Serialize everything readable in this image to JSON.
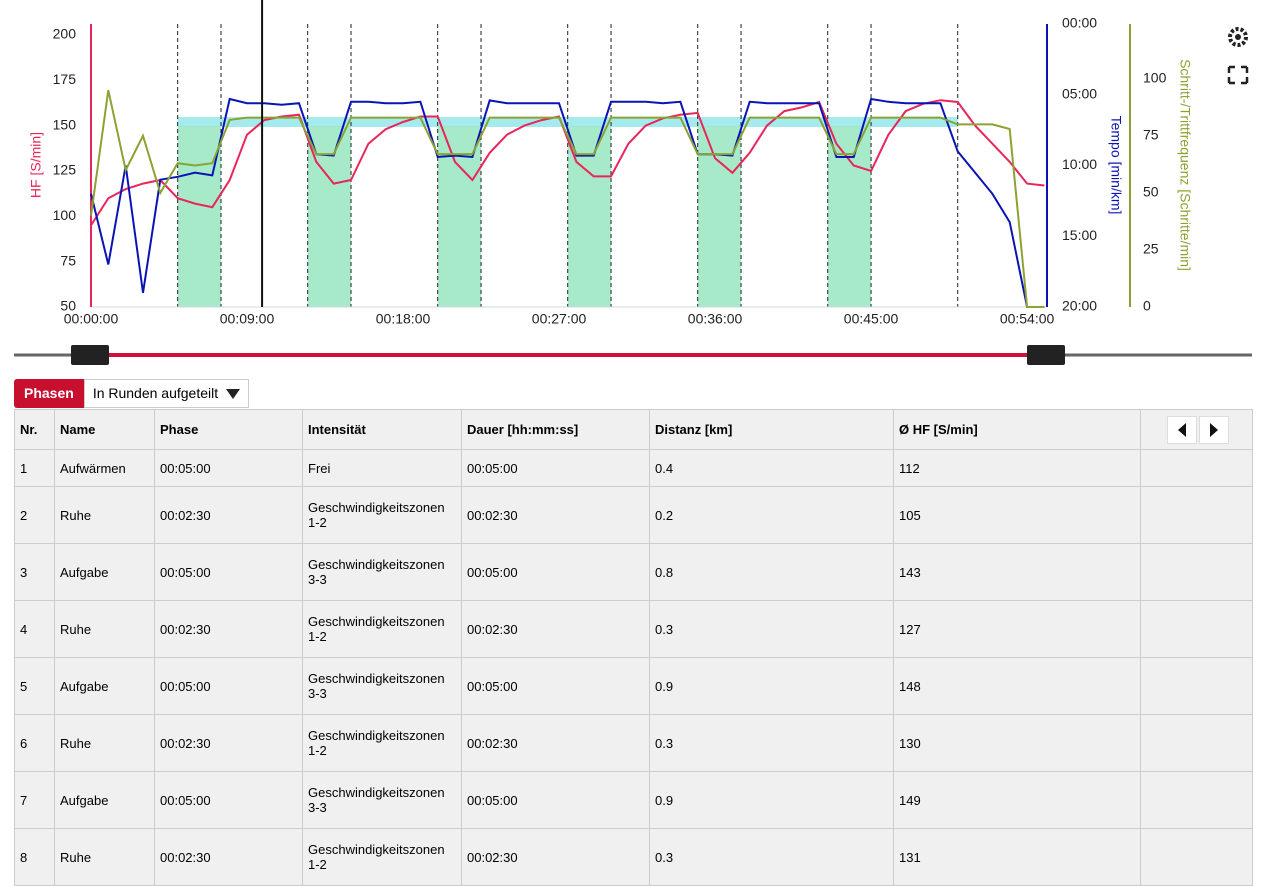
{
  "chart_data": {
    "type": "line",
    "x": [
      0,
      1,
      2,
      3,
      4,
      5,
      6,
      7,
      8,
      9,
      10,
      11,
      12,
      13,
      14,
      15,
      16,
      17,
      18,
      19,
      20,
      21,
      22,
      23,
      24,
      25,
      26,
      27,
      28,
      29,
      30,
      31,
      32,
      33,
      34,
      35,
      36,
      37,
      38,
      39,
      40,
      41,
      42,
      43,
      44,
      45,
      46,
      47,
      48,
      49,
      50,
      51,
      52,
      53,
      54,
      55
    ],
    "xlim": [
      0,
      55.15
    ],
    "xticks": [
      {
        "value": 0,
        "label": "00:00:00"
      },
      {
        "value": 9,
        "label": "00:09:00"
      },
      {
        "value": 18,
        "label": "00:18:00"
      },
      {
        "value": 27,
        "label": "00:27:00"
      },
      {
        "value": 36,
        "label": "00:36:00"
      },
      {
        "value": 45,
        "label": "00:45:00"
      },
      {
        "value": 54,
        "label": "00:54:00"
      }
    ],
    "ylabel": "HF [S/min]",
    "ylim": [
      50,
      206
    ],
    "yticks": [
      50,
      75,
      100,
      125,
      150,
      175,
      200
    ],
    "y2label": "Tempo [min/km]",
    "y2lim": [
      0,
      20
    ],
    "y2_inverted": true,
    "y2ticks": [
      {
        "value": 0,
        "label": "00:00"
      },
      {
        "value": 5,
        "label": "05:00"
      },
      {
        "value": 10,
        "label": "10:00"
      },
      {
        "value": 15,
        "label": "15:00"
      },
      {
        "value": 20,
        "label": "20:00"
      }
    ],
    "y3label": "Schritt-/Trittfrequenz [Schritte/min]",
    "y3lim": [
      0,
      124
    ],
    "y3ticks": [
      0,
      25,
      50,
      75,
      100
    ],
    "markers": [
      5,
      7.5,
      12.5,
      15,
      20,
      22.5,
      27.5,
      30,
      35,
      37.5,
      42.5,
      45,
      50
    ],
    "cursor": 9.87,
    "series": [
      {
        "name": "HF",
        "color": "#e8265a",
        "axis": "y",
        "values": [
          95,
          110,
          115,
          118,
          120,
          110,
          107,
          105,
          120,
          145,
          153,
          155,
          156,
          130,
          118,
          120,
          140,
          148,
          152,
          155,
          155,
          130,
          120,
          135,
          145,
          150,
          153,
          155,
          130,
          122,
          122,
          140,
          150,
          154,
          156,
          157,
          132,
          124,
          135,
          150,
          158,
          160,
          163,
          140,
          128,
          125,
          145,
          158,
          162,
          164,
          163,
          150,
          140,
          130,
          118,
          117
        ]
      },
      {
        "name": "Tempo",
        "color": "#0a14b4",
        "axis": "y2",
        "values": [
          12,
          17,
          10,
          19,
          11,
          10.8,
          10.5,
          10.7,
          5.3,
          5.6,
          5.6,
          5.7,
          5.6,
          9.2,
          9.3,
          5.5,
          5.5,
          5.6,
          5.6,
          5.5,
          9.4,
          9.3,
          9.4,
          5.4,
          5.6,
          5.6,
          5.6,
          5.6,
          9.3,
          9.3,
          5.5,
          5.5,
          5.5,
          5.6,
          5.5,
          9.2,
          9.2,
          9.3,
          5.5,
          5.6,
          5.6,
          5.6,
          5.6,
          9.4,
          9.4,
          5.3,
          5.5,
          5.6,
          5.6,
          5.6,
          9,
          10.5,
          12,
          14,
          20,
          20
        ]
      },
      {
        "name": "Schritt-/Trittfrequenz",
        "color": "#8aa332",
        "axis": "y3",
        "values": [
          40,
          95,
          60,
          75,
          50,
          63,
          62,
          63,
          82,
          83,
          83,
          83,
          83,
          67,
          67,
          83,
          83,
          83,
          83,
          83,
          67,
          67,
          67,
          83,
          83,
          83,
          83,
          83,
          67,
          67,
          83,
          83,
          83,
          83,
          83,
          67,
          67,
          67,
          83,
          83,
          83,
          83,
          83,
          67,
          67,
          83,
          83,
          83,
          83,
          83,
          80,
          80,
          80,
          78,
          0,
          0
        ]
      }
    ]
  },
  "controls": {
    "tab": "Phasen",
    "dropdown": "In Runden aufgeteilt"
  },
  "table": {
    "columns": [
      "Nr.",
      "Name",
      "Phase",
      "Intensität",
      "Dauer [hh:mm:ss]",
      "Distanz [km]",
      "Ø HF [S/min]"
    ],
    "rows": [
      [
        "1",
        "Aufwärmen",
        "00:05:00",
        "Frei",
        "00:05:00",
        "0.4",
        "112"
      ],
      [
        "2",
        "Ruhe",
        "00:02:30",
        "Geschwindigkeitszonen 1-2",
        "00:02:30",
        "0.2",
        "105"
      ],
      [
        "3",
        "Aufgabe",
        "00:05:00",
        "Geschwindigkeitszonen 3-3",
        "00:05:00",
        "0.8",
        "143"
      ],
      [
        "4",
        "Ruhe",
        "00:02:30",
        "Geschwindigkeitszonen 1-2",
        "00:02:30",
        "0.3",
        "127"
      ],
      [
        "5",
        "Aufgabe",
        "00:05:00",
        "Geschwindigkeitszonen 3-3",
        "00:05:00",
        "0.9",
        "148"
      ],
      [
        "6",
        "Ruhe",
        "00:02:30",
        "Geschwindigkeitszonen 1-2",
        "00:02:30",
        "0.3",
        "130"
      ],
      [
        "7",
        "Aufgabe",
        "00:05:00",
        "Geschwindigkeitszonen 3-3",
        "00:05:00",
        "0.9",
        "149"
      ],
      [
        "8",
        "Ruhe",
        "00:02:30",
        "Geschwindigkeitszonen 1-2",
        "00:02:30",
        "0.3",
        "131"
      ]
    ]
  }
}
